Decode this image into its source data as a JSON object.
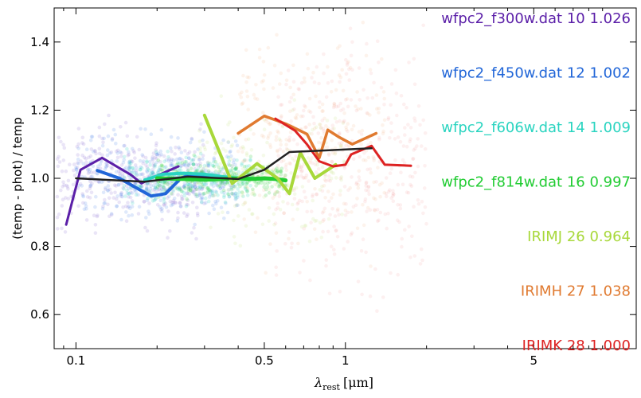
{
  "chart_data": {
    "type": "line",
    "title": "",
    "ylabel": "(temp - phot) / temp",
    "xlabel": {
      "lambda": "λ",
      "sub": "rest",
      "unit": "[μm]"
    },
    "x_scale": "log",
    "xlim": [
      0.083,
      12
    ],
    "ylim": [
      0.5,
      1.5
    ],
    "x_ticks": [
      {
        "value": 0.1,
        "label": "0.1"
      },
      {
        "value": 0.5,
        "label": "0.5"
      },
      {
        "value": 1,
        "label": "1"
      },
      {
        "value": 5,
        "label": "5"
      }
    ],
    "y_ticks": [
      {
        "value": 0.6,
        "label": "0.6"
      },
      {
        "value": 0.8,
        "label": "0.8"
      },
      {
        "value": 1.0,
        "label": "1.0"
      },
      {
        "value": 1.2,
        "label": "1.2"
      },
      {
        "value": 1.4,
        "label": "1.4"
      }
    ],
    "legend": [
      {
        "text": "wfpc2_f300w.dat  10 1.026",
        "color": "#5b1fa8"
      },
      {
        "text": "wfpc2_f450w.dat  12 1.002",
        "color": "#2166d8"
      },
      {
        "text": "wfpc2_f606w.dat  14 1.009",
        "color": "#2ad4c0"
      },
      {
        "text": "wfpc2_f814w.dat  16 0.997",
        "color": "#22cc33"
      },
      {
        "text": "IRIMJ  26 0.964",
        "color": "#a8d83a"
      },
      {
        "text": "IRIMH  27 1.038",
        "color": "#e07a30"
      },
      {
        "text": "IRIMK  28 1.000",
        "color": "#dd2222"
      }
    ],
    "series": [
      {
        "name": "wfpc2_f300w.dat",
        "color": "#5b1fa8",
        "width": 3,
        "x": [
          0.092,
          0.104,
          0.125,
          0.145,
          0.16,
          0.175,
          0.19,
          0.21,
          0.24
        ],
        "y": [
          0.864,
          1.025,
          1.06,
          1.03,
          1.01,
          0.985,
          1.0,
          1.015,
          1.035
        ]
      },
      {
        "name": "wfpc2_f450w.dat",
        "color": "#2166d8",
        "width": 4,
        "x": [
          0.12,
          0.145,
          0.165,
          0.19,
          0.215,
          0.245,
          0.26,
          0.3,
          0.35
        ],
        "y": [
          1.023,
          1.0,
          0.975,
          0.948,
          0.955,
          1.0,
          1.008,
          1.01,
          1.0
        ]
      },
      {
        "name": "wfpc2_f606w.dat",
        "color": "#2ad4c0",
        "width": 4,
        "x": [
          0.18,
          0.21,
          0.25,
          0.3,
          0.35,
          0.4,
          0.45
        ],
        "y": [
          0.995,
          1.012,
          1.015,
          1.012,
          1.005,
          1.0,
          1.0
        ]
      },
      {
        "name": "wfpc2_f814w.dat",
        "color": "#22cc33",
        "width": 5,
        "x": [
          0.2,
          0.25,
          0.3,
          0.35,
          0.4,
          0.45,
          0.5,
          0.55,
          0.6
        ],
        "y": [
          1.0,
          0.998,
          0.996,
          0.998,
          1.0,
          0.998,
          1.0,
          0.998,
          0.994
        ]
      },
      {
        "name": "IRIMJ",
        "color": "#a8d83a",
        "width": 4,
        "x": [
          0.3,
          0.38,
          0.47,
          0.56,
          0.62,
          0.68,
          0.77,
          0.92
        ],
        "y": [
          1.185,
          0.985,
          1.043,
          1.0,
          0.955,
          1.075,
          1.0,
          1.04
        ]
      },
      {
        "name": "IRIMH",
        "color": "#e07a30",
        "width": 3.5,
        "x": [
          0.4,
          0.5,
          0.6,
          0.72,
          0.8,
          0.86,
          0.95,
          1.06,
          1.3
        ],
        "y": [
          1.132,
          1.183,
          1.16,
          1.13,
          1.06,
          1.142,
          1.12,
          1.1,
          1.132
        ]
      },
      {
        "name": "IRIMK",
        "color": "#dd2222",
        "width": 3,
        "x": [
          0.55,
          0.65,
          0.72,
          0.8,
          0.9,
          1.0,
          1.05,
          1.25,
          1.4,
          1.75
        ],
        "y": [
          1.175,
          1.14,
          1.1,
          1.05,
          1.035,
          1.04,
          1.07,
          1.095,
          1.04,
          1.037
        ]
      },
      {
        "name": "",
        "color": "#222222",
        "width": 2.5,
        "x": [
          0.1,
          0.18,
          0.26,
          0.4,
          0.5,
          0.62,
          1.25
        ],
        "y": [
          1.0,
          0.99,
          1.005,
          0.998,
          1.025,
          1.077,
          1.088
        ]
      }
    ],
    "scatter_clouds": [
      {
        "color": "#7a5cd0",
        "x_range": [
          0.085,
          0.3
        ],
        "y_center": 1.0,
        "y_spread": 0.12,
        "count": 350,
        "opacity": 0.16
      },
      {
        "color": "#3a78e8",
        "x_range": [
          0.1,
          0.4
        ],
        "y_center": 1.0,
        "y_spread": 0.1,
        "count": 350,
        "opacity": 0.16
      },
      {
        "color": "#2ad4c0",
        "x_range": [
          0.15,
          0.45
        ],
        "y_center": 1.0,
        "y_spread": 0.06,
        "count": 260,
        "opacity": 0.2
      },
      {
        "color": "#22cc33",
        "x_range": [
          0.2,
          0.6
        ],
        "y_center": 1.0,
        "y_spread": 0.04,
        "count": 260,
        "opacity": 0.2
      },
      {
        "color": "#b9e06a",
        "x_range": [
          0.28,
          1.0
        ],
        "y_center": 1.02,
        "y_spread": 0.15,
        "count": 180,
        "opacity": 0.15
      },
      {
        "color": "#f1a060",
        "x_range": [
          0.4,
          1.4
        ],
        "y_center": 1.1,
        "y_spread": 0.25,
        "count": 260,
        "opacity": 0.12
      },
      {
        "color": "#f07070",
        "x_range": [
          0.55,
          2.0
        ],
        "y_center": 1.05,
        "y_spread": 0.3,
        "count": 360,
        "opacity": 0.1
      }
    ]
  }
}
